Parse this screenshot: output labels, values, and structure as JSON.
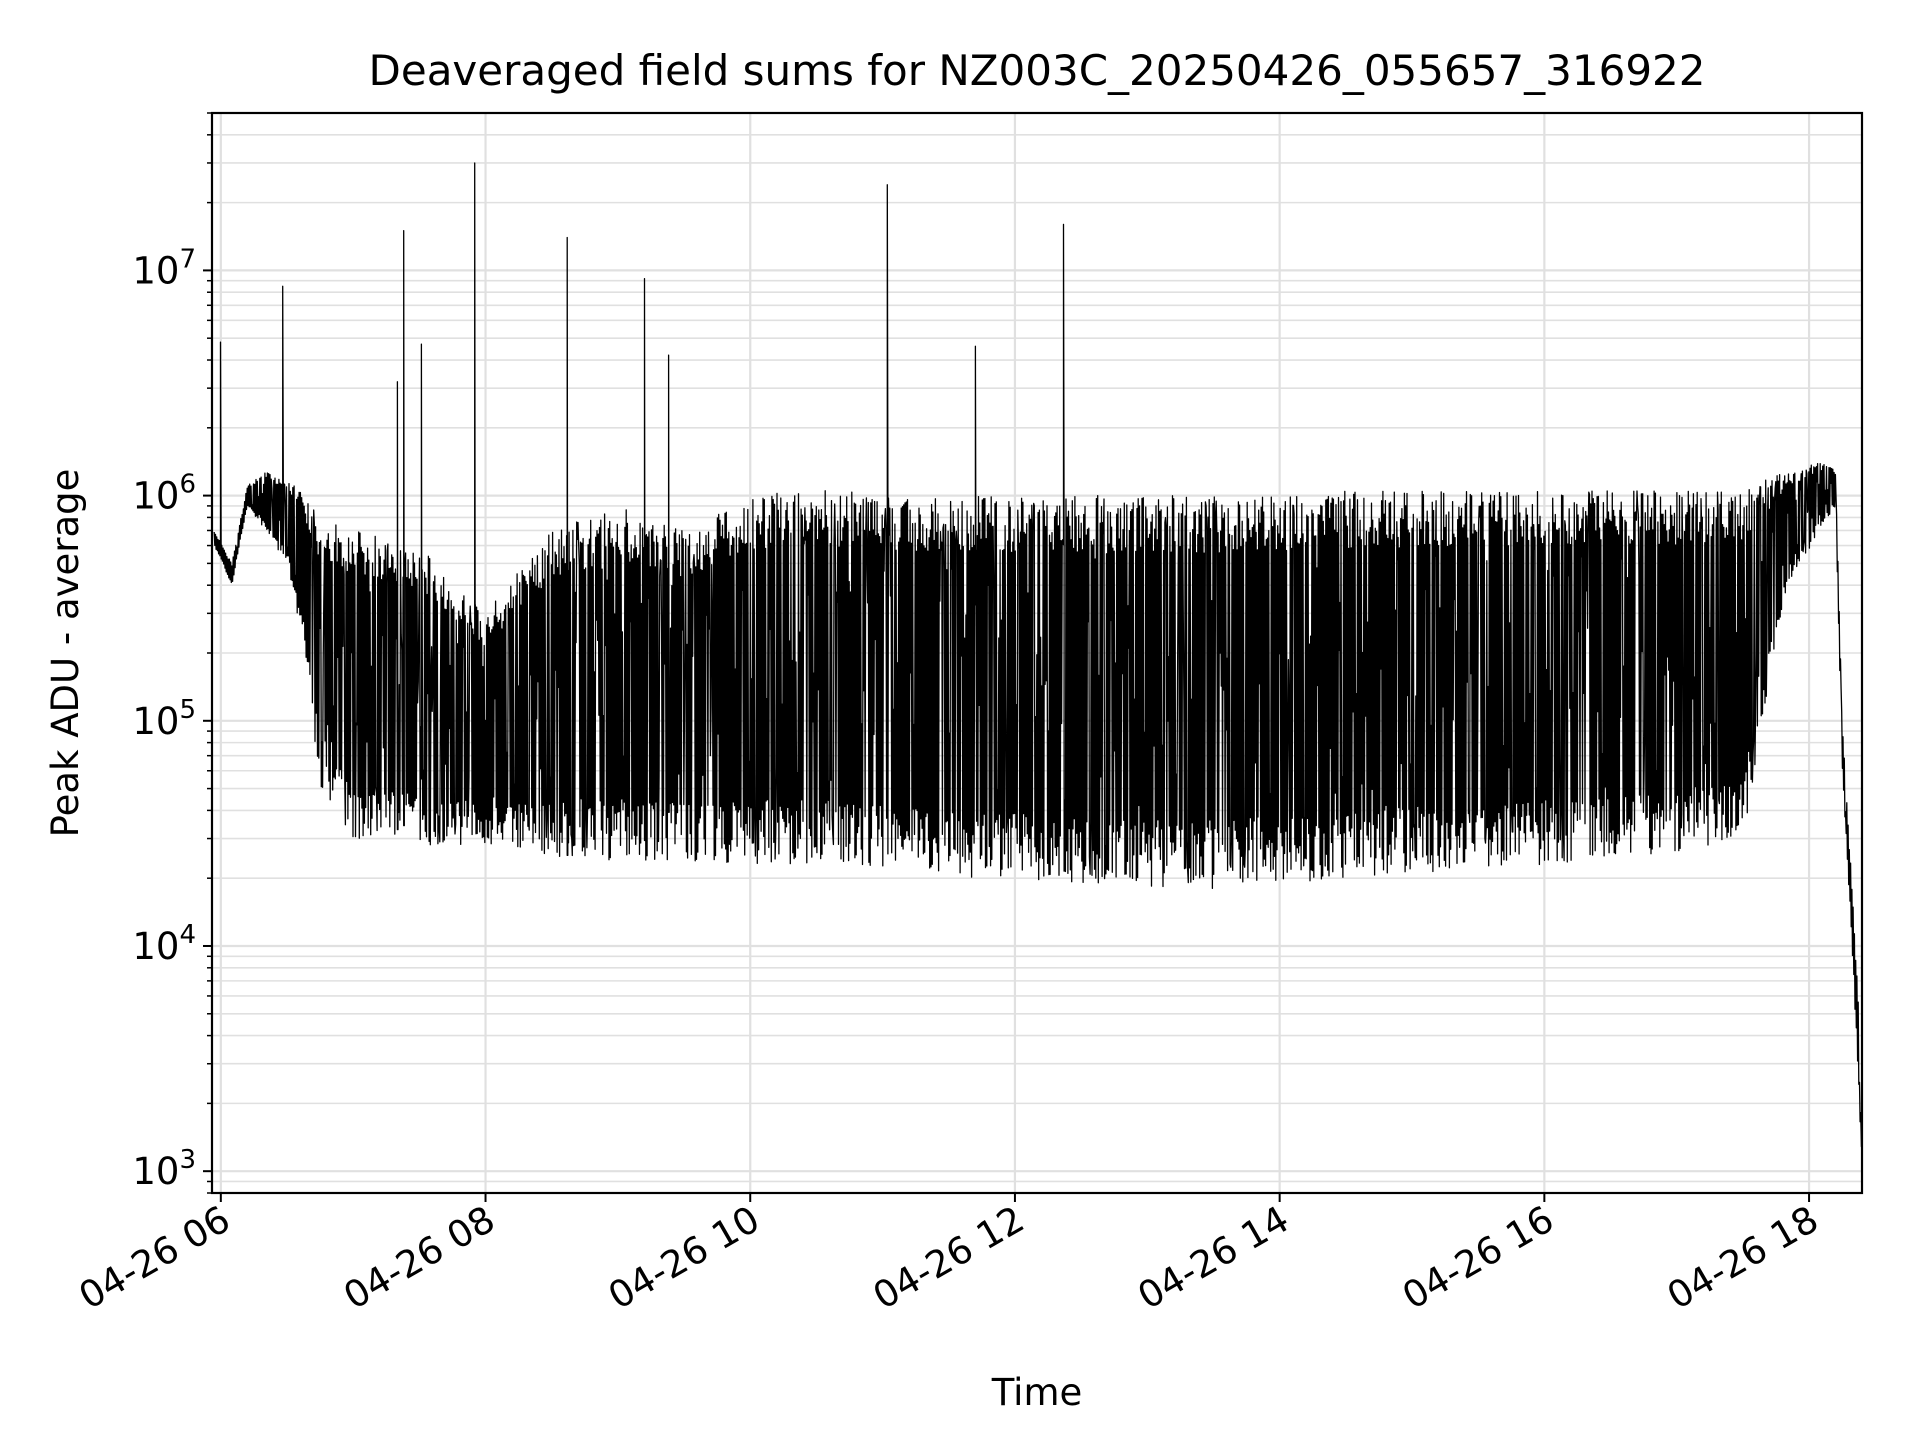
{
  "chart_data": {
    "type": "line",
    "title": "Deaveraged field sums for NZ003C_20250426_055657_316922",
    "xlabel": "Time",
    "ylabel": "Peak ADU - average",
    "x_tick_labels": [
      "04-26 06",
      "04-26 08",
      "04-26 10",
      "04-26 12",
      "04-26 14",
      "04-26 16",
      "04-26 18"
    ],
    "y_tick_labels": [
      {
        "base": "10",
        "exp": "3"
      },
      {
        "base": "10",
        "exp": "4"
      },
      {
        "base": "10",
        "exp": "5"
      },
      {
        "base": "10",
        "exp": "6"
      },
      {
        "base": "10",
        "exp": "7"
      }
    ],
    "y_scale": "log",
    "grid": true,
    "line_color": "#000000",
    "grid_color": "#e0e0e0",
    "xlim": [
      "2025-04-26 05:56",
      "2025-04-26 18:24"
    ],
    "ylim": [
      800,
      50000000
    ],
    "series": [
      {
        "x": [
          "2025-04-26 05:57",
          "2025-04-26 06:05",
          "2025-04-26 06:12",
          "2025-04-26 06:20",
          "2025-04-26 06:30",
          "2025-04-26 06:38",
          "2025-04-26 06:45",
          "2025-04-26 07:00",
          "2025-04-26 07:30",
          "2025-04-26 08:00",
          "2025-04-26 08:30",
          "2025-04-26 09:00",
          "2025-04-26 09:30",
          "2025-04-26 10:00",
          "2025-04-26 10:30",
          "2025-04-26 11:00",
          "2025-04-26 11:30",
          "2025-04-26 12:00",
          "2025-04-26 12:30",
          "2025-04-26 13:00",
          "2025-04-26 13:30",
          "2025-04-26 14:00",
          "2025-04-26 14:30",
          "2025-04-26 15:00",
          "2025-04-26 15:30",
          "2025-04-26 16:00",
          "2025-04-26 16:30",
          "2025-04-26 17:00",
          "2025-04-26 17:30",
          "2025-04-26 17:50",
          "2025-04-26 18:05",
          "2025-04-26 18:12",
          "2025-04-26 18:15",
          "2025-04-26 18:20",
          "2025-04-26 18:24"
        ],
        "y_upper": [
          700000,
          500000,
          1100000,
          1300000,
          1200000,
          1000000,
          800000,
          700000,
          600000,
          300000,
          700000,
          900000,
          700000,
          1000000,
          1100000,
          1000000,
          1000000,
          1000000,
          1000000,
          1000000,
          1000000,
          1000000,
          1050000,
          1050000,
          1050000,
          1050000,
          1050000,
          1050000,
          1050000,
          1300000,
          1400000,
          1300000,
          100000,
          15000,
          3000
        ],
        "y_lower": [
          600000,
          400000,
          900000,
          700000,
          500000,
          200000,
          50000,
          30000,
          28000,
          28000,
          25000,
          24000,
          24000,
          23000,
          23000,
          22000,
          20000,
          20000,
          19000,
          18000,
          18000,
          19000,
          20000,
          21000,
          22000,
          23000,
          24000,
          26000,
          30000,
          400000,
          700000,
          900000,
          60000,
          8000,
          1000
        ]
      }
    ],
    "spikes": [
      {
        "x": "2025-04-26 06:00",
        "y": 4800000
      },
      {
        "x": "2025-04-26 06:28",
        "y": 8500000
      },
      {
        "x": "2025-04-26 07:20",
        "y": 3200000
      },
      {
        "x": "2025-04-26 07:23",
        "y": 15000000
      },
      {
        "x": "2025-04-26 07:31",
        "y": 4700000
      },
      {
        "x": "2025-04-26 07:55",
        "y": 30000000
      },
      {
        "x": "2025-04-26 08:37",
        "y": 14000000
      },
      {
        "x": "2025-04-26 09:12",
        "y": 9200000
      },
      {
        "x": "2025-04-26 09:23",
        "y": 4200000
      },
      {
        "x": "2025-04-26 11:02",
        "y": 24000000
      },
      {
        "x": "2025-04-26 11:42",
        "y": 4600000
      },
      {
        "x": "2025-04-26 12:22",
        "y": 16000000
      }
    ]
  }
}
